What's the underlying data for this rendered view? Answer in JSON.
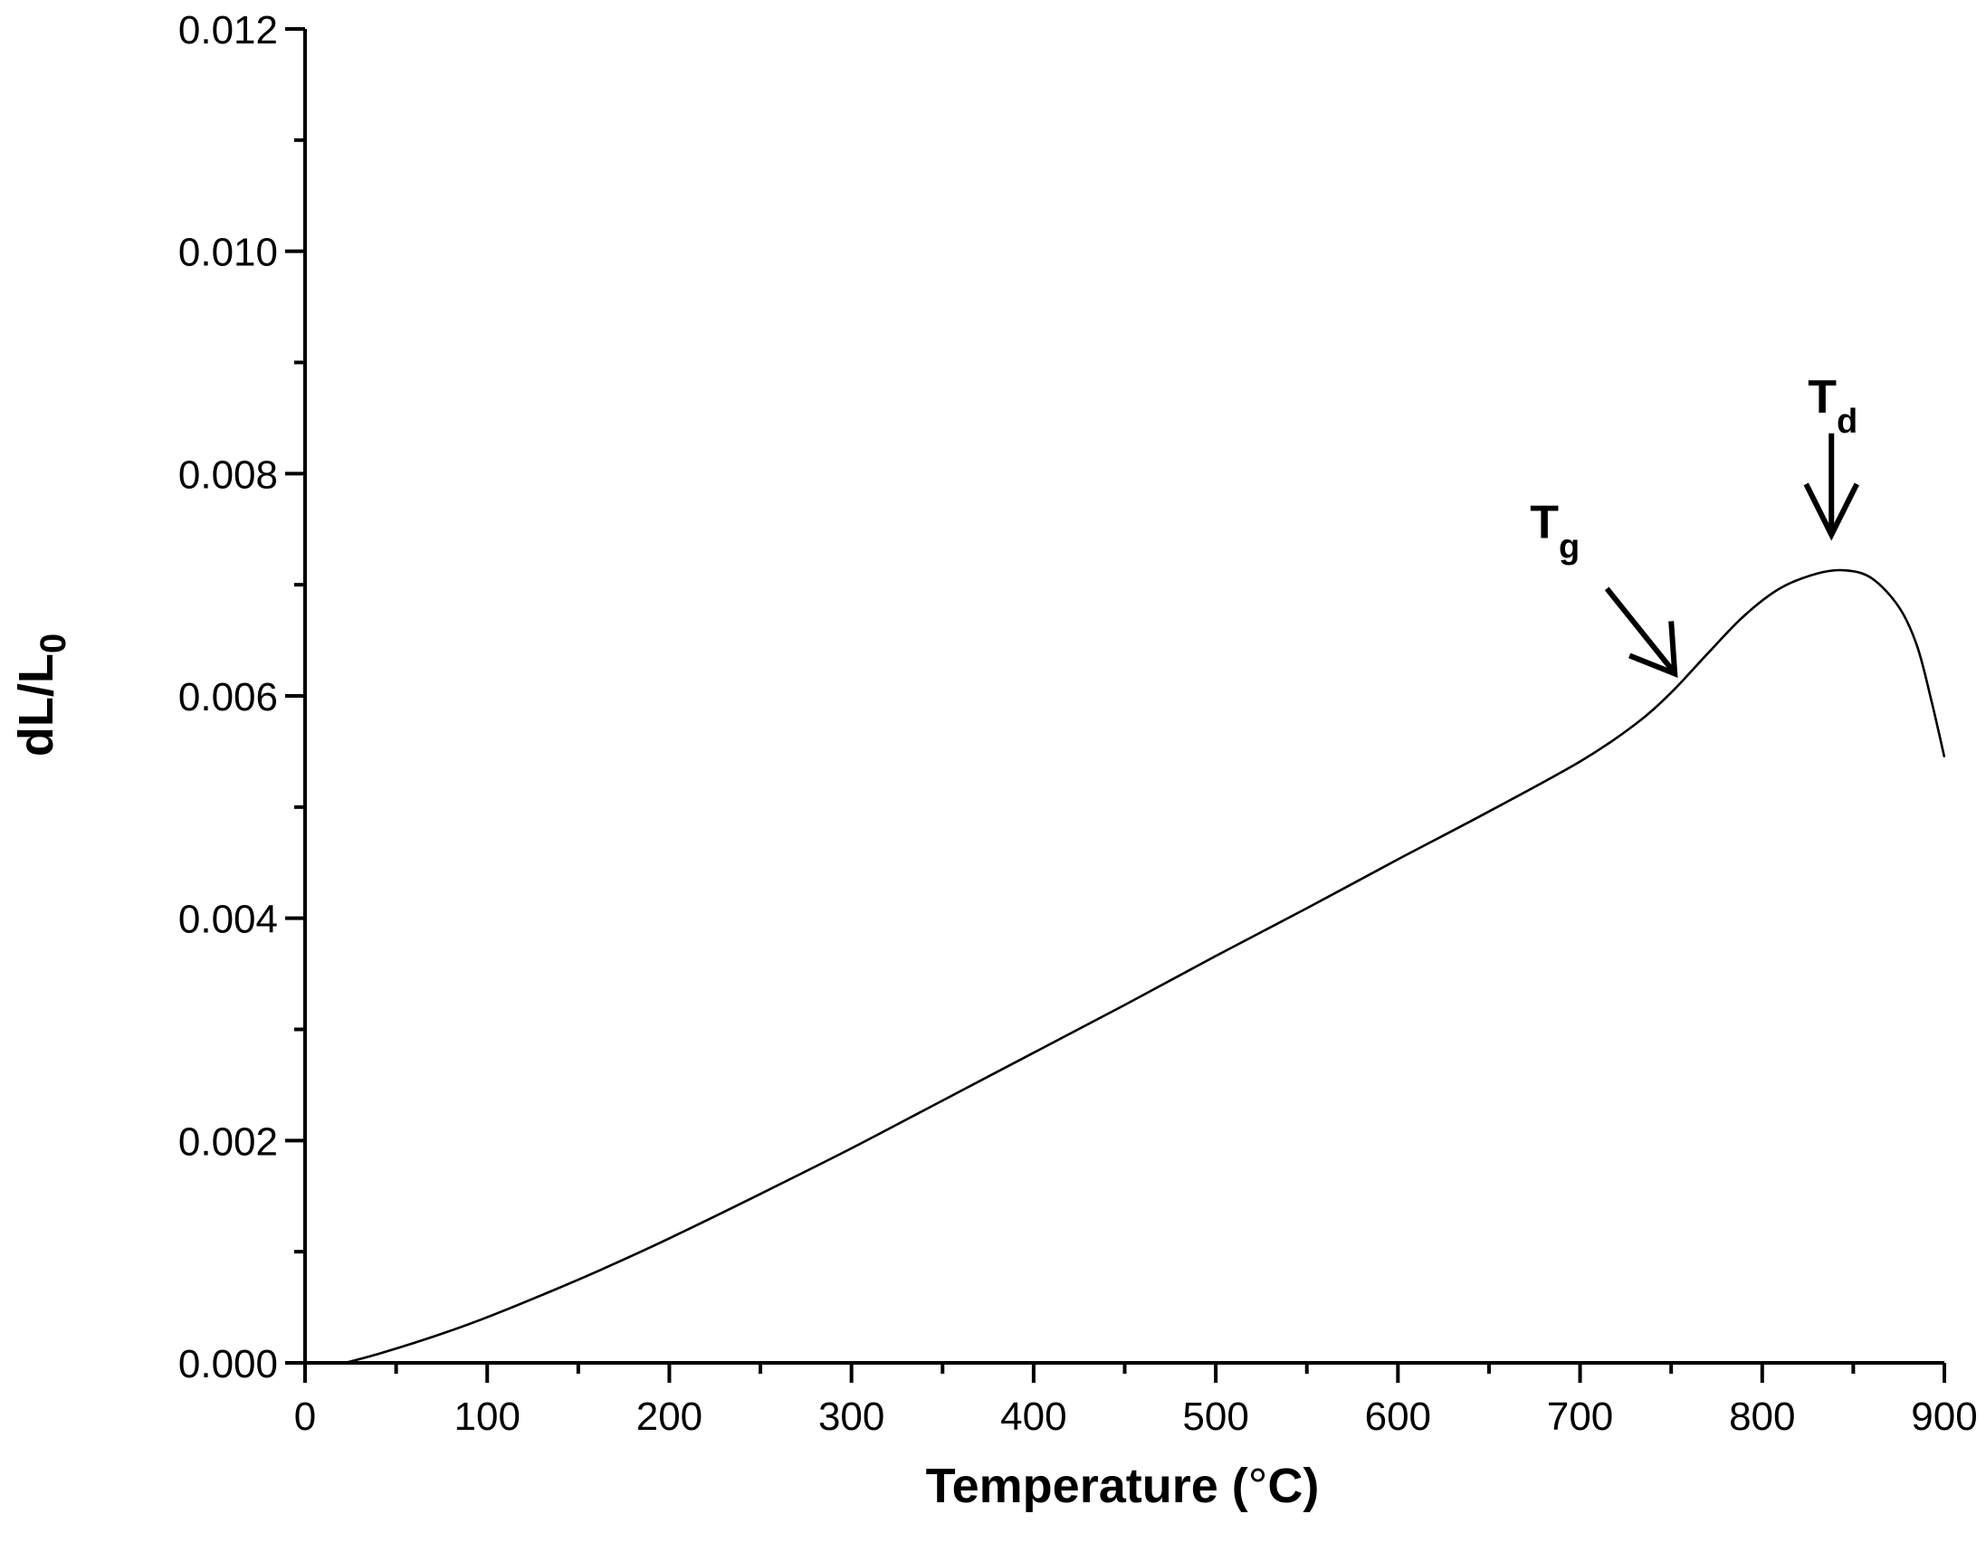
{
  "chart_data": {
    "type": "line",
    "title": "",
    "xlabel": "Temperature (°C)",
    "xlabel_main": "Temperature (",
    "xlabel_degree": "°",
    "xlabel_unit": "C)",
    "ylabel": "dL/L0",
    "ylabel_main": "dL/L",
    "ylabel_sub": "0",
    "xlim": [
      0,
      900
    ],
    "ylim": [
      0,
      0.012
    ],
    "x_major_ticks": [
      0,
      100,
      200,
      300,
      400,
      500,
      600,
      700,
      800,
      900
    ],
    "x_tick_labels": [
      "0",
      "100",
      "200",
      "300",
      "400",
      "500",
      "600",
      "700",
      "800",
      "900"
    ],
    "y_major_ticks": [
      0,
      0.002,
      0.004,
      0.006,
      0.008,
      0.01,
      0.012
    ],
    "y_tick_labels": [
      "0.000",
      "0.002",
      "0.004",
      "0.006",
      "0.008",
      "0.010",
      "0.012"
    ],
    "grid": false,
    "series": [
      {
        "x": [
          22,
          40,
          60,
          80,
          100,
          130,
          160,
          200,
          250,
          300,
          350,
          400,
          450,
          500,
          550,
          600,
          650,
          700,
          730,
          750,
          770,
          790,
          810,
          830,
          845,
          860,
          875,
          885,
          893,
          900
        ],
        "y": [
          0.0,
          8e-05,
          0.00018,
          0.00029,
          0.00041,
          0.00061,
          0.00082,
          0.00112,
          0.00152,
          0.00193,
          0.00236,
          0.00279,
          0.00322,
          0.00366,
          0.00409,
          0.00453,
          0.00496,
          0.00541,
          0.00574,
          0.00603,
          0.00638,
          0.00672,
          0.00697,
          0.0071,
          0.00713,
          0.00706,
          0.0068,
          0.00645,
          0.00595,
          0.00545
        ]
      }
    ],
    "annotations": [
      {
        "label_main": "T",
        "label_sub": "g",
        "x": 752,
        "y": 0.0062
      },
      {
        "label_main": "T",
        "label_sub": "d",
        "x": 838,
        "y": 0.00745
      }
    ]
  }
}
